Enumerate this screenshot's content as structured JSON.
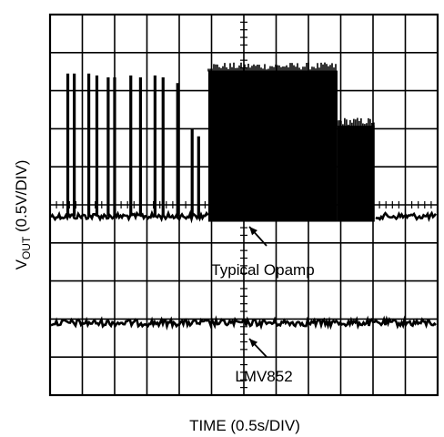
{
  "chart_data": {
    "type": "line",
    "xlabel": "TIME (0.5s/DIV)",
    "ylabel_main": "V",
    "ylabel_sub": "OUT",
    "ylabel_rest": " (0.5V/DIV)",
    "x_divisions": 12,
    "y_divisions": 10,
    "grid": true,
    "x_unit": "s/div",
    "x_scale": 0.5,
    "y_unit": "V/div",
    "y_scale": 0.5,
    "series": [
      {
        "name": "Typical Opamp",
        "baseline_div": 5.3,
        "noise_div": 0.08,
        "spikes": [
          {
            "t_div": 0.55,
            "height_div": 3.75
          },
          {
            "t_div": 0.75,
            "height_div": 3.75
          },
          {
            "t_div": 1.2,
            "height_div": 3.75
          },
          {
            "t_div": 1.45,
            "height_div": 3.7
          },
          {
            "t_div": 1.8,
            "height_div": 3.65
          },
          {
            "t_div": 2.0,
            "height_div": 3.65
          },
          {
            "t_div": 2.5,
            "height_div": 3.7
          },
          {
            "t_div": 2.8,
            "height_div": 3.65
          },
          {
            "t_div": 3.25,
            "height_div": 3.7
          },
          {
            "t_div": 3.5,
            "height_div": 3.65
          },
          {
            "t_div": 3.95,
            "height_div": 3.5
          },
          {
            "t_div": 4.4,
            "height_div": 2.3
          },
          {
            "t_div": 4.6,
            "height_div": 2.1
          }
        ],
        "dense_segments": [
          {
            "start_div": 4.9,
            "end_div": 8.9,
            "top_div": 3.9
          },
          {
            "start_div": 8.9,
            "end_div": 10.05,
            "top_div": 2.45
          }
        ]
      },
      {
        "name": "LMV852",
        "baseline_div": 8.1,
        "noise_div": 0.09
      }
    ],
    "annotations": [
      {
        "text": "Typical Opamp",
        "points_to": "Typical Opamp"
      },
      {
        "text": "LMV852",
        "points_to": "LMV852"
      }
    ]
  }
}
